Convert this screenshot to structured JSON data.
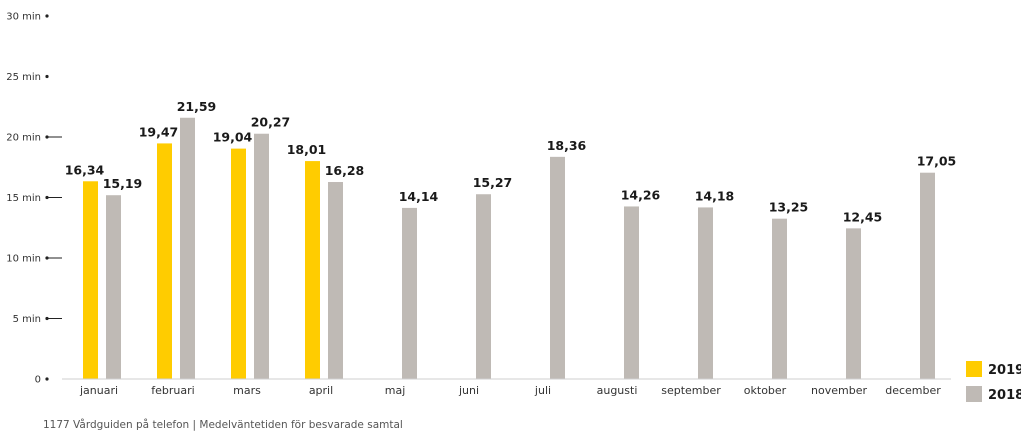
{
  "chart_data": {
    "type": "bar",
    "categories": [
      "januari",
      "februari",
      "mars",
      "april",
      "maj",
      "juni",
      "juli",
      "augusti",
      "september",
      "oktober",
      "november",
      "december"
    ],
    "series": [
      {
        "name": "2019",
        "color": "#FFCC00",
        "values": [
          16.34,
          19.47,
          19.04,
          18.01,
          null,
          null,
          null,
          null,
          null,
          null,
          null,
          null
        ],
        "labels": [
          "16,34",
          "19,47",
          "19,04",
          "18,01",
          null,
          null,
          null,
          null,
          null,
          null,
          null,
          null
        ]
      },
      {
        "name": "2018",
        "color": "#BFBAB5",
        "values": [
          15.19,
          21.59,
          20.27,
          16.28,
          14.14,
          15.27,
          18.36,
          14.26,
          14.18,
          13.25,
          12.45,
          17.05
        ],
        "labels": [
          "15,19",
          "21,59",
          "20,27",
          "16,28",
          "14,14",
          "15,27",
          "18,36",
          "14,26",
          "14,18",
          "13,25",
          "12,45",
          "17,05"
        ]
      }
    ],
    "ylim": [
      0,
      30
    ],
    "yticks": [
      0,
      5,
      10,
      15,
      20,
      25,
      30
    ],
    "ytick_labels": [
      "0",
      "5 min",
      "10 min",
      "15 min",
      "20 min",
      "25 min",
      "30 min"
    ],
    "legend_position": "bottom-right"
  },
  "caption": "1177 Vårdguiden på telefon | Medelväntetiden för besvarade samtal"
}
